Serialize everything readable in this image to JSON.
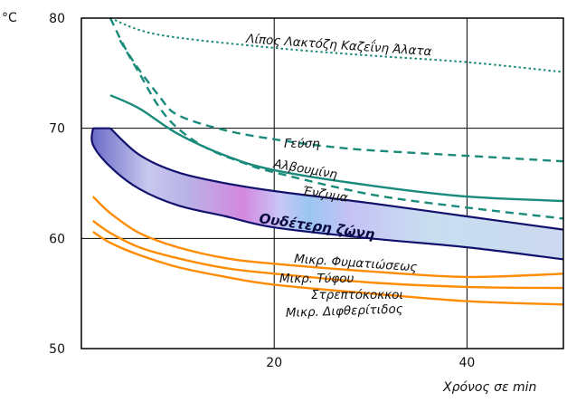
{
  "chart_data": {
    "type": "line",
    "unit_label": "°C",
    "xlabel": "Χρόνος σε min",
    "xlim": [
      0,
      50
    ],
    "ylim": [
      50,
      80
    ],
    "x_ticks": [
      "20",
      "40"
    ],
    "y_ticks": [
      "50",
      "60",
      "70",
      "80"
    ],
    "grid": true,
    "colors": {
      "teal": "#1a8a7a",
      "orange": "#ff8c00",
      "band_edge": "#12126e",
      "band_fill": "#c8c6f5",
      "grid": "#000000"
    },
    "series": [
      {
        "name": "Λίπος Λακτόζη Καζεΐνη Άλατα",
        "style": "dotted",
        "color": "teal",
        "points": [
          [
            3,
            80
          ],
          [
            8,
            78.5
          ],
          [
            20,
            77.3
          ],
          [
            30,
            76.6
          ],
          [
            40,
            76
          ],
          [
            50,
            75.1
          ]
        ]
      },
      {
        "name": "",
        "style": "dashed",
        "color": "teal",
        "points": [
          [
            3,
            80
          ],
          [
            5,
            76.6
          ],
          [
            8,
            73
          ],
          [
            10,
            71.2
          ],
          [
            15,
            69.8
          ],
          [
            20,
            69
          ],
          [
            25,
            68.4
          ],
          [
            30,
            68
          ],
          [
            40,
            67.5
          ],
          [
            50,
            67
          ]
        ]
      },
      {
        "name": "Γεύση",
        "style": "dashed",
        "color": "teal",
        "points": [
          [
            4,
            78
          ],
          [
            6,
            75
          ],
          [
            8,
            72
          ],
          [
            10,
            70
          ],
          [
            13,
            68.2
          ],
          [
            17,
            66.8
          ],
          [
            20,
            66
          ],
          [
            30,
            64
          ],
          [
            40,
            62.8
          ],
          [
            50,
            61.8
          ]
        ]
      },
      {
        "name": "Ένζυμα",
        "style": "solid",
        "color": "teal",
        "points": [
          [
            3,
            73
          ],
          [
            6,
            71.8
          ],
          [
            10,
            69.5
          ],
          [
            15,
            67.5
          ],
          [
            20,
            66.2
          ],
          [
            30,
            64.8
          ],
          [
            40,
            63.8
          ],
          [
            50,
            63.4
          ]
        ]
      },
      {
        "name": "Αλβουμίνη",
        "style": "solid",
        "color": "orange",
        "points": [
          [
            1.2,
            63.8
          ],
          [
            3,
            62.3
          ],
          [
            6,
            60.5
          ],
          [
            10,
            59.2
          ],
          [
            15,
            58.2
          ],
          [
            20,
            57.7
          ],
          [
            30,
            57
          ],
          [
            40,
            56.5
          ],
          [
            50,
            56.8
          ]
        ]
      },
      {
        "name": "Μικρ. Φυματιώσεως",
        "style": "solid",
        "color": "orange",
        "points": [
          [
            1.2,
            61.6
          ],
          [
            3,
            60.5
          ],
          [
            6,
            59.2
          ],
          [
            10,
            58.2
          ],
          [
            15,
            57.3
          ],
          [
            20,
            56.8
          ],
          [
            30,
            56
          ],
          [
            40,
            55.6
          ],
          [
            50,
            55.5
          ]
        ]
      },
      {
        "name": "Μικρ. Τύφου",
        "style": "solid",
        "color": "orange",
        "points": [
          [
            1.2,
            60.6
          ],
          [
            3,
            59.6
          ],
          [
            6,
            58.5
          ],
          [
            10,
            57.4
          ],
          [
            15,
            56.5
          ],
          [
            20,
            55.8
          ],
          [
            30,
            55
          ],
          [
            40,
            54.3
          ],
          [
            50,
            54
          ]
        ]
      }
    ],
    "band": {
      "name": "Ουδέτερη ζώνη",
      "upper": [
        [
          3,
          70
        ],
        [
          6,
          67.6
        ],
        [
          10,
          66
        ],
        [
          15,
          65
        ],
        [
          20,
          64.3
        ],
        [
          30,
          63.2
        ],
        [
          40,
          62
        ],
        [
          50,
          60.8
        ]
      ],
      "lower": [
        [
          1.2,
          70
        ],
        [
          1.2,
          68.5
        ],
        [
          3,
          66.5
        ],
        [
          6,
          64.5
        ],
        [
          10,
          63
        ],
        [
          15,
          62
        ],
        [
          20,
          61
        ],
        [
          30,
          60
        ],
        [
          40,
          59.2
        ],
        [
          50,
          58.1
        ]
      ]
    },
    "annotations": [
      "Στρεπτόκοκκοι",
      "Μικρ. Διφθερίτιδος"
    ]
  }
}
